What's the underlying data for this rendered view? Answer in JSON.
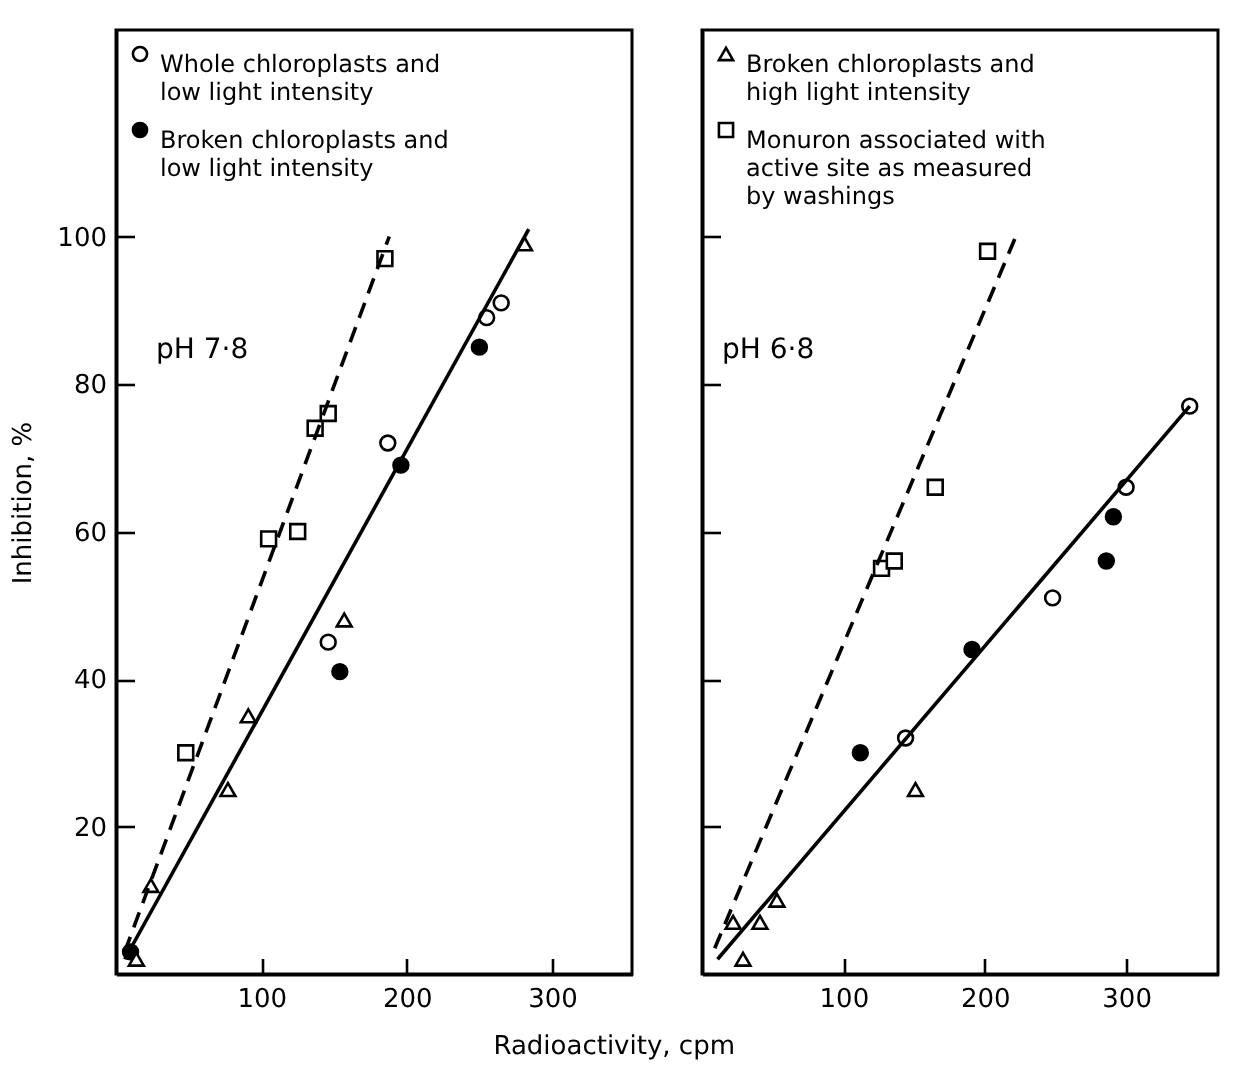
{
  "chart_data": [
    {
      "type": "scatter",
      "xlabel": "Radioactivity,  cpm",
      "ylabel": "Inhibition,  %",
      "xlim": [
        0,
        355
      ],
      "ylim": [
        0,
        128
      ],
      "xticks": [
        100,
        200,
        300
      ],
      "yticks": [
        20,
        40,
        60,
        80,
        100
      ],
      "legend": "top left",
      "annotations": [
        "pH 7·8"
      ],
      "series": [
        {
          "name": "Whole chloroplasts and low light intensity",
          "marker": "circle",
          "color": "#000000",
          "x": [
            187,
            255,
            265,
            146
          ],
          "values": [
            72,
            89,
            91,
            45
          ]
        },
        {
          "name": "Broken chloroplasts and low light intensity",
          "marker": "dot",
          "color": "#000000",
          "x": [
            250,
            196,
            154,
            10
          ],
          "values": [
            85,
            69,
            41,
            3
          ]
        },
        {
          "marker": "triangle",
          "color": "#000000",
          "x": [
            281,
            157,
            91,
            77,
            24,
            14
          ],
          "values": [
            99,
            48,
            35,
            25,
            12,
            2
          ]
        },
        {
          "marker": "square",
          "color": "#000000",
          "x": [
            185,
            137,
            146,
            105,
            125,
            48
          ],
          "values": [
            97,
            74,
            76,
            59,
            60,
            30
          ]
        },
        {
          "type": "line",
          "line_style": "solid",
          "color": "#000000",
          "x": [
            6,
            284
          ],
          "values": [
            2,
            101
          ]
        },
        {
          "type": "line",
          "line_style": "dashed",
          "color": "#000000",
          "x": [
            6,
            188
          ],
          "values": [
            3,
            100
          ]
        }
      ]
    },
    {
      "type": "scatter",
      "xlim": [
        0,
        365
      ],
      "ylim": [
        0,
        128
      ],
      "xticks": [
        100,
        200,
        300
      ],
      "yticks": [
        20,
        40,
        60,
        80,
        100
      ],
      "tick_labels": "x",
      "legend": "top left",
      "annotations": [
        "pH 6·8"
      ],
      "series": [
        {
          "marker": "circle",
          "color": "#000000",
          "x": [
            345,
            300,
            248,
            144
          ],
          "values": [
            77,
            66,
            51,
            32
          ]
        },
        {
          "marker": "dot",
          "color": "#000000",
          "x": [
            291,
            286,
            191,
            112
          ],
          "values": [
            62,
            56,
            44,
            30
          ]
        },
        {
          "name": "Broken chloroplasts and high light intensity",
          "marker": "triangle",
          "color": "#000000",
          "x": [
            151,
            53,
            41,
            22,
            29
          ],
          "values": [
            25,
            10,
            7,
            7,
            2
          ]
        },
        {
          "name": "Monuron associated with active site as measured by washings",
          "marker": "square",
          "color": "#000000",
          "x": [
            127,
            136,
            165,
            202
          ],
          "values": [
            55,
            56,
            66,
            98
          ]
        },
        {
          "type": "line",
          "line_style": "solid",
          "color": "#000000",
          "x": [
            11,
            345
          ],
          "values": [
            2,
            77
          ]
        },
        {
          "type": "line",
          "line_style": "dashed",
          "color": "#000000",
          "x": [
            9,
            222
          ],
          "values": [
            3.5,
            100
          ]
        }
      ]
    }
  ]
}
